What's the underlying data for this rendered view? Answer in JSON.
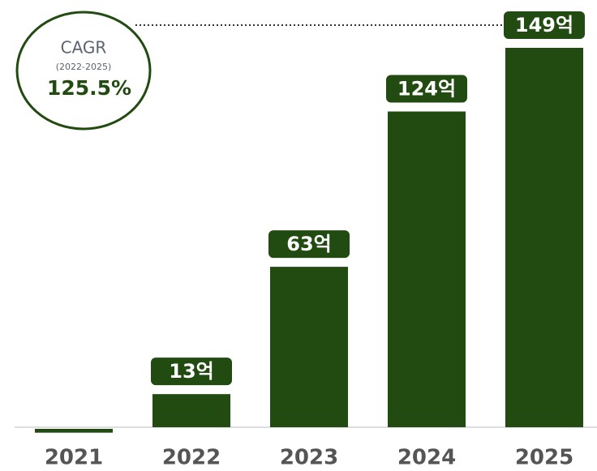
{
  "chart_data": {
    "type": "bar",
    "categories": [
      "2021",
      "2022",
      "2023",
      "2024",
      "2025"
    ],
    "values": [
      -1.5,
      13,
      63,
      124,
      149
    ],
    "value_labels": [
      null,
      "13억",
      "63억",
      "124억",
      "149억"
    ],
    "color": "#214b11",
    "annotations": [
      "CAGR",
      "(2022-2025)",
      "125.5%"
    ]
  }
}
